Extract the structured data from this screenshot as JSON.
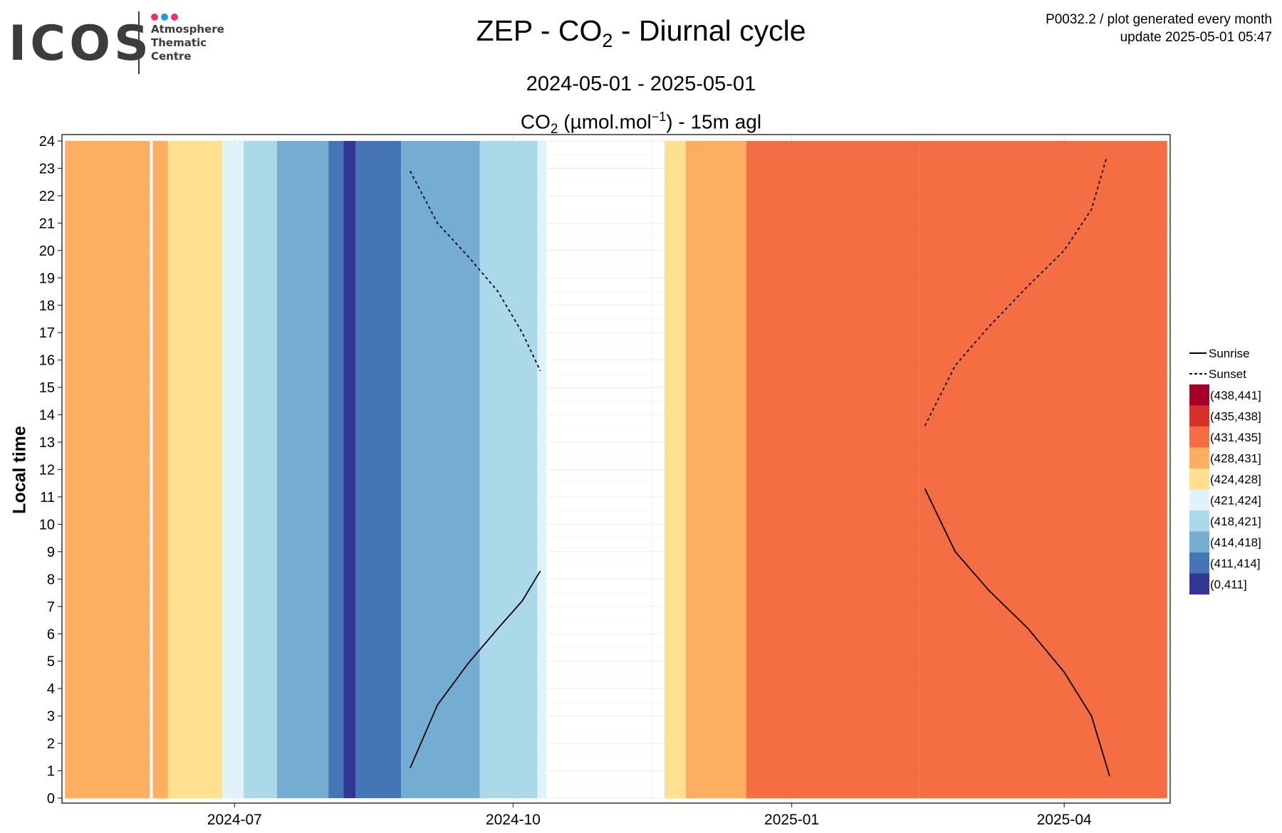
{
  "logo": {
    "word": "ICOS",
    "lines": [
      "Atmosphere",
      "Thematic",
      "Centre"
    ],
    "dot_colors": [
      "#e8336f",
      "#1c9be6",
      "#e8336f"
    ]
  },
  "meta": {
    "line1": "P0032.2 / plot generated every month",
    "line2": "update  2025-05-01 05:47"
  },
  "header": {
    "title_prefix": "ZEP - CO",
    "title_sub": "2",
    "title_suffix": " - Diurnal cycle",
    "period": "2024-05-01 - 2025-05-01",
    "unit_prefix": "CO",
    "unit_sub": "2",
    "unit_mid": " (µmol.mol",
    "unit_sup": "−1",
    "unit_suffix": ") - 15m agl"
  },
  "chart_data": {
    "type": "heatmap",
    "title": "ZEP - CO2 - Diurnal cycle",
    "subtitle": "2024-05-01 - 2025-05-01",
    "value_label": "CO2 (µmol.mol−1) - 15m agl",
    "ylabel": "Local time",
    "xlabel": "",
    "x_range": [
      "2024-05-05",
      "2025-05-06"
    ],
    "ylim": [
      0,
      24
    ],
    "x_tick_labels": [
      "2024-07",
      "2024-10",
      "2025-01",
      "2025-04"
    ],
    "x_tick_dates": [
      "2024-07-01",
      "2024-10-01",
      "2025-01-01",
      "2025-04-01"
    ],
    "y_ticks": [
      0,
      1,
      2,
      3,
      4,
      5,
      6,
      7,
      8,
      9,
      10,
      11,
      12,
      13,
      14,
      15,
      16,
      17,
      18,
      19,
      20,
      21,
      22,
      23,
      24
    ],
    "grid": true,
    "legend_position": "right",
    "legend_lines": [
      {
        "label": "Sunrise",
        "dash": "solid"
      },
      {
        "label": "Sunset",
        "dash": "dashed"
      }
    ],
    "bins": [
      {
        "label": "(438,441]",
        "color": "#a50026"
      },
      {
        "label": "(435,438]",
        "color": "#d73027"
      },
      {
        "label": "(431,435]",
        "color": "#f46d43"
      },
      {
        "label": "(428,431]",
        "color": "#fdae61"
      },
      {
        "label": "(424,428]",
        "color": "#fee090"
      },
      {
        "label": "(421,424]",
        "color": "#e0f3f8"
      },
      {
        "label": "(418,421]",
        "color": "#abd9e9"
      },
      {
        "label": "(414,418]",
        "color": "#74add1"
      },
      {
        "label": "(411,414]",
        "color": "#4575b4"
      },
      {
        "label": "(0,411]",
        "color": "#313695"
      }
    ],
    "periods": [
      {
        "start": "2024-05-06",
        "end": "2024-06-03",
        "bin": "(428,431]"
      },
      {
        "start": "2024-06-04",
        "end": "2024-06-09",
        "bin": "(428,431]"
      },
      {
        "start": "2024-06-09",
        "end": "2024-06-27",
        "bin": "(424,428]"
      },
      {
        "start": "2024-06-27",
        "end": "2024-07-04",
        "bin": "(421,424]"
      },
      {
        "start": "2024-07-04",
        "end": "2024-07-15",
        "bin": "(418,421]"
      },
      {
        "start": "2024-07-15",
        "end": "2024-08-01",
        "bin": "(414,418]"
      },
      {
        "start": "2024-08-01",
        "end": "2024-08-06",
        "bin": "(411,414]"
      },
      {
        "start": "2024-08-06",
        "end": "2024-08-10",
        "bin": "(0,411]"
      },
      {
        "start": "2024-08-10",
        "end": "2024-08-25",
        "bin": "(411,414]"
      },
      {
        "start": "2024-08-25",
        "end": "2024-09-20",
        "bin": "(414,418]"
      },
      {
        "start": "2024-09-20",
        "end": "2024-10-09",
        "bin": "(418,421]"
      },
      {
        "start": "2024-10-09",
        "end": "2024-10-12",
        "bin": "(421,424]"
      },
      {
        "start": "2024-11-20",
        "end": "2024-11-27",
        "bin": "(424,428]"
      },
      {
        "start": "2024-11-27",
        "end": "2024-12-17",
        "bin": "(428,431]"
      },
      {
        "start": "2024-12-17",
        "end": "2025-02-12",
        "bin": "(431,435]"
      },
      {
        "start": "2025-02-12",
        "end": "2025-05-05",
        "bin": "(431,435]"
      }
    ],
    "sunrise_series": [
      {
        "x": "2024-08-28",
        "y": 1.1
      },
      {
        "x": "2024-09-06",
        "y": 3.4
      },
      {
        "x": "2024-09-16",
        "y": 4.9
      },
      {
        "x": "2024-09-26",
        "y": 6.2
      },
      {
        "x": "2024-10-04",
        "y": 7.2
      },
      {
        "x": "2024-10-10",
        "y": 8.3
      },
      {
        "x": "2025-02-14",
        "y": 11.3
      },
      {
        "x": "2025-02-24",
        "y": 9.0
      },
      {
        "x": "2025-03-07",
        "y": 7.6
      },
      {
        "x": "2025-03-20",
        "y": 6.2
      },
      {
        "x": "2025-04-01",
        "y": 4.6
      },
      {
        "x": "2025-04-10",
        "y": 3.0
      },
      {
        "x": "2025-04-16",
        "y": 0.8
      }
    ],
    "sunset_series": [
      {
        "x": "2024-08-28",
        "y": 22.9
      },
      {
        "x": "2024-09-06",
        "y": 21.0
      },
      {
        "x": "2024-09-16",
        "y": 19.8
      },
      {
        "x": "2024-09-26",
        "y": 18.5
      },
      {
        "x": "2024-10-04",
        "y": 17.0
      },
      {
        "x": "2024-10-10",
        "y": 15.6
      },
      {
        "x": "2025-02-14",
        "y": 13.6
      },
      {
        "x": "2025-02-24",
        "y": 15.8
      },
      {
        "x": "2025-03-07",
        "y": 17.2
      },
      {
        "x": "2025-03-20",
        "y": 18.7
      },
      {
        "x": "2025-04-01",
        "y": 20.0
      },
      {
        "x": "2025-04-10",
        "y": 21.5
      },
      {
        "x": "2025-04-15",
        "y": 23.4
      }
    ]
  }
}
